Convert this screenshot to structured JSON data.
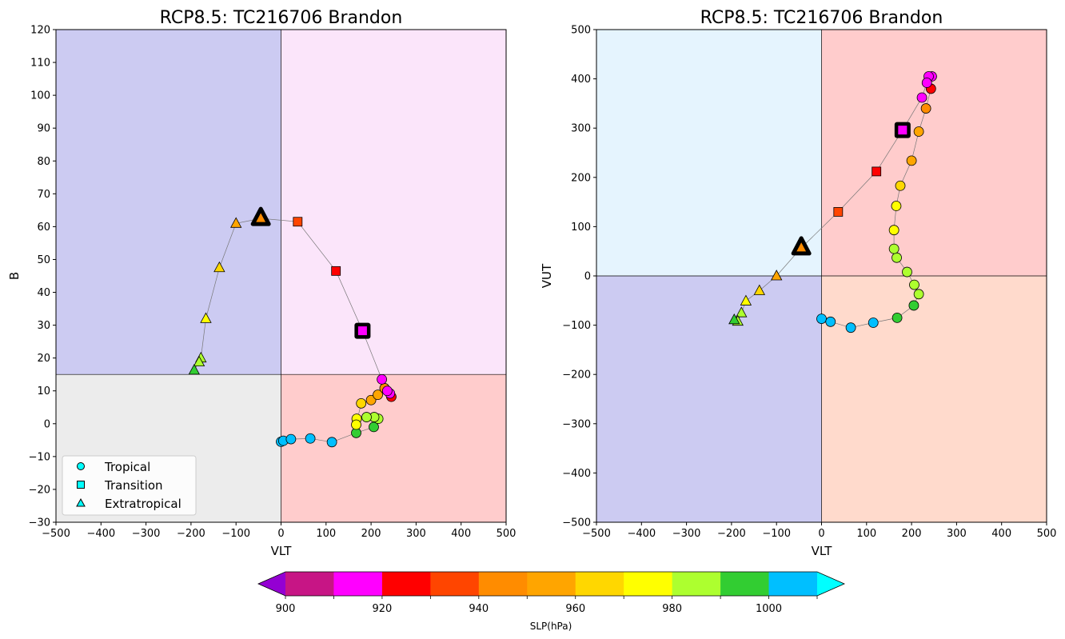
{
  "figure": {
    "colorbar": {
      "label": "SLP(hPa)",
      "tick_labels": [
        "900",
        "920",
        "940",
        "960",
        "980",
        "1000"
      ],
      "levels": [
        900,
        910,
        920,
        930,
        940,
        950,
        960,
        970,
        980,
        990,
        1000,
        1010
      ],
      "colors": [
        "#c71585",
        "#ff00ff",
        "#ff0000",
        "#ff4500",
        "#ff8c00",
        "#ffa500",
        "#ffd700",
        "#ffff00",
        "#adff2f",
        "#32cd32",
        "#00bfff"
      ],
      "under_color": "#9400d3",
      "over_color": "#00ffff"
    },
    "legend": {
      "entries": [
        {
          "label": "Tropical",
          "marker": "circle",
          "color": "#00ffff"
        },
        {
          "label": "Transition",
          "marker": "square",
          "color": "#00ffff"
        },
        {
          "label": "Extratropical",
          "marker": "triangle",
          "color": "#00ffff"
        }
      ]
    }
  },
  "chart_data": [
    {
      "type": "scatter",
      "title": "RCP8.5: TC216706 Brandon",
      "xlabel": "VLT",
      "ylabel": "B",
      "xlim": [
        -500,
        500
      ],
      "ylim": [
        -30,
        120
      ],
      "xticks": [
        -500,
        -400,
        -300,
        -200,
        -100,
        0,
        100,
        200,
        300,
        400,
        500
      ],
      "yticks": [
        -30,
        -20,
        -10,
        0,
        10,
        20,
        30,
        40,
        50,
        60,
        70,
        80,
        90,
        100,
        110,
        120
      ],
      "xticklabels": [
        "−500",
        "−400",
        "−300",
        "−200",
        "−100",
        "0",
        "100",
        "200",
        "300",
        "400",
        "500"
      ],
      "yticklabels": [
        "−30",
        "−20",
        "−10",
        "0",
        "10",
        "20",
        "30",
        "40",
        "50",
        "60",
        "70",
        "80",
        "90",
        "100",
        "110",
        "120"
      ],
      "quadrants": [
        {
          "x": [
            -500,
            0
          ],
          "y": [
            15,
            120
          ],
          "color": "#cccbf2"
        },
        {
          "x": [
            0,
            500
          ],
          "y": [
            15,
            120
          ],
          "color": "#fbe5fa"
        },
        {
          "x": [
            -500,
            0
          ],
          "y": [
            -30,
            15
          ],
          "color": "#ececec"
        },
        {
          "x": [
            0,
            500
          ],
          "y": [
            -30,
            15
          ],
          "color": "#ffcccc"
        }
      ],
      "divider_x": 0,
      "divider_y": 15,
      "legend_position": "lower-left",
      "track": [
        {
          "x": 0,
          "y": -5.5,
          "slp": 1003,
          "phase": "tropical"
        },
        {
          "x": 5,
          "y": -5.2,
          "slp": 1002,
          "phase": "tropical"
        },
        {
          "x": 22,
          "y": -4.7,
          "slp": 1003,
          "phase": "tropical"
        },
        {
          "x": 65,
          "y": -4.5,
          "slp": 1004,
          "phase": "tropical"
        },
        {
          "x": 113,
          "y": -5.6,
          "slp": 1004,
          "phase": "tropical"
        },
        {
          "x": 167,
          "y": -2.8,
          "slp": 993,
          "phase": "tropical"
        },
        {
          "x": 206,
          "y": -1.0,
          "slp": 992,
          "phase": "tropical"
        },
        {
          "x": 216,
          "y": 1.5,
          "slp": 984,
          "phase": "tropical"
        },
        {
          "x": 207,
          "y": 2.0,
          "slp": 983,
          "phase": "tropical"
        },
        {
          "x": 190,
          "y": 2.0,
          "slp": 985,
          "phase": "tropical"
        },
        {
          "x": 168,
          "y": 1.5,
          "slp": 975,
          "phase": "tropical"
        },
        {
          "x": 167,
          "y": -0.3,
          "slp": 976,
          "phase": "tropical"
        },
        {
          "x": 178,
          "y": 6.2,
          "slp": 968,
          "phase": "tropical"
        },
        {
          "x": 200,
          "y": 7.2,
          "slp": 955,
          "phase": "tropical"
        },
        {
          "x": 215,
          "y": 8.8,
          "slp": 952,
          "phase": "tropical"
        },
        {
          "x": 230,
          "y": 10.8,
          "slp": 945,
          "phase": "tropical"
        },
        {
          "x": 245,
          "y": 8.2,
          "slp": 923,
          "phase": "tropical"
        },
        {
          "x": 242,
          "y": 9.2,
          "slp": 918,
          "phase": "tropical"
        },
        {
          "x": 236,
          "y": 10.0,
          "slp": 915,
          "phase": "tropical"
        },
        {
          "x": 224,
          "y": 13.5,
          "slp": 912,
          "phase": "tropical"
        },
        {
          "x": 181,
          "y": 28.3,
          "slp": 915,
          "phase": "transition"
        },
        {
          "x": 122,
          "y": 46.5,
          "slp": 925,
          "phase": "transition"
        },
        {
          "x": 37,
          "y": 61.5,
          "slp": 935,
          "phase": "transition"
        },
        {
          "x": -45,
          "y": 62.5,
          "slp": 945,
          "phase": "extratropical"
        },
        {
          "x": -100,
          "y": 61.0,
          "slp": 955,
          "phase": "extratropical"
        },
        {
          "x": -137,
          "y": 47.5,
          "slp": 965,
          "phase": "extratropical"
        },
        {
          "x": -167,
          "y": 32.0,
          "slp": 975,
          "phase": "extratropical"
        },
        {
          "x": -178,
          "y": 20.0,
          "slp": 985,
          "phase": "extratropical"
        },
        {
          "x": -182,
          "y": 18.8,
          "slp": 987,
          "phase": "extratropical"
        },
        {
          "x": -193,
          "y": 16.3,
          "slp": 992,
          "phase": "extratropical"
        }
      ]
    },
    {
      "type": "scatter",
      "title": "RCP8.5: TC216706 Brandon",
      "xlabel": "VLT",
      "ylabel": "VUT",
      "xlim": [
        -500,
        500
      ],
      "ylim": [
        -500,
        500
      ],
      "xticks": [
        -500,
        -400,
        -300,
        -200,
        -100,
        0,
        100,
        200,
        300,
        400,
        500
      ],
      "yticks": [
        -500,
        -400,
        -300,
        -200,
        -100,
        0,
        100,
        200,
        300,
        400,
        500
      ],
      "xticklabels": [
        "−500",
        "−400",
        "−300",
        "−200",
        "−100",
        "0",
        "100",
        "200",
        "300",
        "400",
        "500"
      ],
      "yticklabels": [
        "−500",
        "−400",
        "−300",
        "−200",
        "−100",
        "0",
        "100",
        "200",
        "300",
        "400",
        "500"
      ],
      "quadrants": [
        {
          "x": [
            -500,
            0
          ],
          "y": [
            0,
            500
          ],
          "color": "#e5f4fe"
        },
        {
          "x": [
            0,
            500
          ],
          "y": [
            0,
            500
          ],
          "color": "#ffcccc"
        },
        {
          "x": [
            -500,
            0
          ],
          "y": [
            -500,
            0
          ],
          "color": "#cccbf2"
        },
        {
          "x": [
            0,
            500
          ],
          "y": [
            -500,
            0
          ],
          "color": "#ffdacc"
        }
      ],
      "divider_x": 0,
      "divider_y": 0,
      "track": [
        {
          "x": 0,
          "y": -87,
          "slp": 1003,
          "phase": "tropical"
        },
        {
          "x": 20,
          "y": -93,
          "slp": 1003,
          "phase": "tropical"
        },
        {
          "x": 65,
          "y": -105,
          "slp": 1004,
          "phase": "tropical"
        },
        {
          "x": 115,
          "y": -95,
          "slp": 1004,
          "phase": "tropical"
        },
        {
          "x": 168,
          "y": -85,
          "slp": 993,
          "phase": "tropical"
        },
        {
          "x": 205,
          "y": -60,
          "slp": 992,
          "phase": "tropical"
        },
        {
          "x": 216,
          "y": -37,
          "slp": 984,
          "phase": "tropical"
        },
        {
          "x": 206,
          "y": -18,
          "slp": 983,
          "phase": "tropical"
        },
        {
          "x": 190,
          "y": 8,
          "slp": 985,
          "phase": "tropical"
        },
        {
          "x": 167,
          "y": 37,
          "slp": 984,
          "phase": "tropical"
        },
        {
          "x": 161,
          "y": 55,
          "slp": 984,
          "phase": "tropical"
        },
        {
          "x": 161,
          "y": 93,
          "slp": 975,
          "phase": "tropical"
        },
        {
          "x": 166,
          "y": 142,
          "slp": 975,
          "phase": "tropical"
        },
        {
          "x": 175,
          "y": 183,
          "slp": 968,
          "phase": "tropical"
        },
        {
          "x": 200,
          "y": 234,
          "slp": 955,
          "phase": "tropical"
        },
        {
          "x": 216,
          "y": 293,
          "slp": 952,
          "phase": "tropical"
        },
        {
          "x": 232,
          "y": 340,
          "slp": 945,
          "phase": "tropical"
        },
        {
          "x": 243,
          "y": 380,
          "slp": 923,
          "phase": "tropical"
        },
        {
          "x": 245,
          "y": 405,
          "slp": 918,
          "phase": "tropical"
        },
        {
          "x": 238,
          "y": 405,
          "slp": 915,
          "phase": "tropical"
        },
        {
          "x": 234,
          "y": 392,
          "slp": 914,
          "phase": "tropical"
        },
        {
          "x": 223,
          "y": 362,
          "slp": 913,
          "phase": "tropical"
        },
        {
          "x": 180,
          "y": 296,
          "slp": 915,
          "phase": "transition"
        },
        {
          "x": 122,
          "y": 212,
          "slp": 925,
          "phase": "transition"
        },
        {
          "x": 37,
          "y": 130,
          "slp": 935,
          "phase": "transition"
        },
        {
          "x": -45,
          "y": 57,
          "slp": 945,
          "phase": "extratropical"
        },
        {
          "x": -100,
          "y": 0,
          "slp": 955,
          "phase": "extratropical"
        },
        {
          "x": -138,
          "y": -30,
          "slp": 965,
          "phase": "extratropical"
        },
        {
          "x": -168,
          "y": -51,
          "slp": 975,
          "phase": "extratropical"
        },
        {
          "x": -178,
          "y": -75,
          "slp": 985,
          "phase": "extratropical"
        },
        {
          "x": -186,
          "y": -92,
          "slp": 987,
          "phase": "extratropical"
        },
        {
          "x": -194,
          "y": -89,
          "slp": 992,
          "phase": "extratropical"
        }
      ]
    }
  ]
}
